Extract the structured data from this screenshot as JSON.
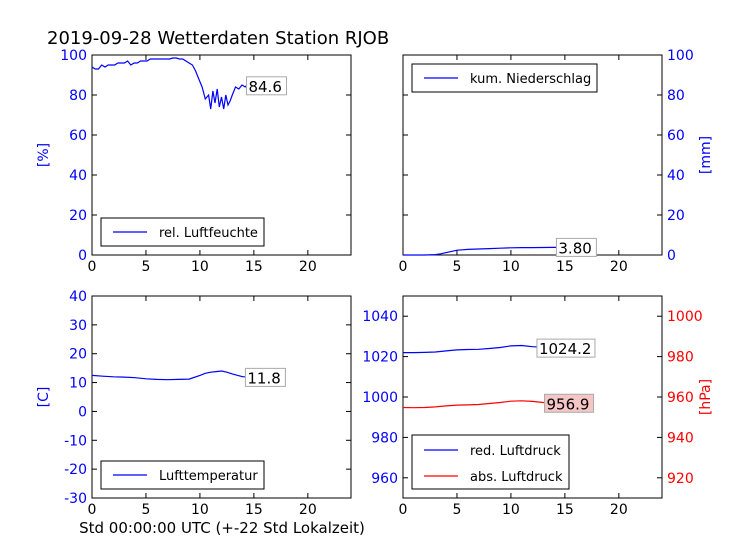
{
  "title": "2019-09-28 Wetterdaten Station RJOB",
  "xlabel": "Std 00:00:00 UTC (+-22 Std Lokalzeit)",
  "colors": {
    "blue": "#0000ff",
    "red": "#ff0000",
    "annot_red_bg": "#f4c6c6",
    "annot_bg": "#ffffff"
  },
  "chart_data": [
    {
      "type": "line",
      "panel": "top-left",
      "ylabel": "[%]",
      "ylabel_side": "left",
      "ylabel_color": "#0000ff",
      "xlim": [
        0,
        24
      ],
      "ylim": [
        0,
        100
      ],
      "xticks": [
        0,
        5,
        10,
        15,
        20
      ],
      "yticks": [
        0,
        20,
        40,
        60,
        80,
        100
      ],
      "legend": {
        "placement": "bottom-left"
      },
      "series": [
        {
          "name": "rel. Luftfeuchte",
          "color": "#0000ff",
          "x": [
            0,
            0.3,
            0.6,
            0.9,
            1.2,
            1.5,
            1.8,
            2.1,
            2.4,
            2.7,
            3.0,
            3.3,
            3.6,
            3.9,
            4.2,
            4.5,
            4.8,
            5.1,
            5.4,
            5.7,
            6.0,
            6.3,
            6.6,
            6.9,
            7.2,
            7.5,
            7.8,
            8.1,
            8.4,
            8.7,
            9.0,
            9.3,
            9.6,
            9.9,
            10.2,
            10.5,
            10.8,
            11.0,
            11.2,
            11.4,
            11.6,
            11.8,
            12.0,
            12.2,
            12.4,
            12.6,
            12.8,
            13.0,
            13.3,
            13.6,
            13.9,
            14.2,
            14.5,
            14.8,
            15.1,
            15.4,
            15.7,
            16.0,
            16.3,
            16.6,
            16.9,
            17.2
          ],
          "y": [
            94,
            93,
            93,
            95,
            94,
            95,
            95,
            95,
            96,
            96,
            96,
            97,
            95,
            96,
            96,
            97,
            97,
            97,
            98,
            98,
            98,
            98,
            98,
            98,
            98,
            98.5,
            98.5,
            98,
            98,
            97,
            96,
            95,
            92,
            88,
            84,
            78,
            80,
            73,
            82,
            76,
            83,
            74,
            79,
            73,
            80,
            75,
            77,
            80,
            84,
            83,
            85,
            84,
            86,
            83,
            86,
            83,
            84,
            82,
            85,
            82,
            84,
            84.6
          ]
        }
      ],
      "annotation": {
        "text": "84.6",
        "x": 14.5,
        "y": 84.6
      }
    },
    {
      "type": "line",
      "panel": "top-right",
      "ylabel": "[mm]",
      "ylabel_side": "right",
      "ylabel_color": "#0000ff",
      "xlim": [
        0,
        24
      ],
      "ylim": [
        0,
        100
      ],
      "xticks": [
        0,
        5,
        10,
        15,
        20
      ],
      "yticks": [
        0,
        20,
        40,
        60,
        80,
        100
      ],
      "legend": {
        "placement": "top-left"
      },
      "series": [
        {
          "name": "kum. Niederschlag",
          "color": "#0000ff",
          "x": [
            0,
            1,
            2,
            3,
            3.5,
            4,
            4.5,
            5,
            5.5,
            6,
            7,
            8,
            9,
            10,
            11,
            12,
            13,
            14,
            15,
            16,
            17.2
          ],
          "y": [
            0,
            0,
            0,
            0.2,
            0.6,
            1.2,
            1.8,
            2.4,
            2.6,
            2.8,
            3.0,
            3.2,
            3.4,
            3.6,
            3.7,
            3.7,
            3.75,
            3.8,
            3.8,
            3.8,
            3.8
          ]
        }
      ],
      "annotation": {
        "text": "3.80",
        "x": 14.4,
        "y": 3.8
      }
    },
    {
      "type": "line",
      "panel": "bottom-left",
      "ylabel": "[C]",
      "ylabel_side": "left",
      "ylabel_color": "#0000ff",
      "xlim": [
        0,
        24
      ],
      "ylim": [
        -30,
        40
      ],
      "xticks": [
        0,
        5,
        10,
        15,
        20
      ],
      "yticks": [
        -30,
        -20,
        -10,
        0,
        10,
        20,
        30,
        40
      ],
      "legend": {
        "placement": "bottom-left"
      },
      "series": [
        {
          "name": "Lufttemperatur",
          "color": "#0000ff",
          "x": [
            0,
            1,
            2,
            3,
            4,
            5,
            6,
            7,
            8,
            9,
            10,
            10.5,
            11,
            11.5,
            12,
            12.5,
            13,
            13.5,
            14,
            15,
            16,
            17.2
          ],
          "y": [
            12.5,
            12.2,
            12.0,
            11.9,
            11.7,
            11.3,
            11.1,
            11.0,
            11.1,
            11.2,
            12.5,
            13.2,
            13.6,
            13.8,
            14.0,
            13.6,
            13.0,
            12.5,
            12.0,
            12.0,
            11.9,
            11.8
          ]
        }
      ],
      "annotation": {
        "text": "11.8",
        "x": 14.4,
        "y": 11.8
      }
    },
    {
      "type": "line",
      "panel": "bottom-right",
      "ylabel": "[hPa]",
      "ylabel_side": "right",
      "ylabel_color": "#ff0000",
      "xlim": [
        0,
        24
      ],
      "ylim_left": [
        950,
        1050
      ],
      "ylim_right": [
        910,
        1010
      ],
      "xticks": [
        0,
        5,
        10,
        15,
        20
      ],
      "yticks_left": [
        960,
        980,
        1000,
        1020,
        1040
      ],
      "yticks_right": [
        920,
        940,
        960,
        980,
        1000
      ],
      "legend": {
        "placement": "bottom-left"
      },
      "series": [
        {
          "name": "red. Luftdruck",
          "color": "#0000ff",
          "axis": "left",
          "x": [
            0,
            1,
            2,
            3,
            4,
            5,
            6,
            7,
            8,
            9,
            10,
            11,
            12,
            13,
            14,
            15,
            16,
            17.2
          ],
          "y": [
            1022.0,
            1022.0,
            1022.1,
            1022.3,
            1022.8,
            1023.3,
            1023.5,
            1023.6,
            1024.0,
            1024.5,
            1025.3,
            1025.5,
            1024.9,
            1024.6,
            1024.3,
            1024.2,
            1024.2,
            1024.2
          ]
        },
        {
          "name": "abs. Luftdruck",
          "color": "#ff0000",
          "axis": "right",
          "x": [
            0,
            1,
            2,
            3,
            4,
            5,
            6,
            7,
            8,
            9,
            10,
            11,
            12,
            13,
            14,
            15,
            16,
            17.2
          ],
          "y": [
            954.8,
            954.7,
            954.8,
            955.1,
            955.6,
            956.0,
            956.1,
            956.3,
            956.8,
            957.3,
            957.9,
            958.1,
            957.8,
            957.3,
            957.0,
            956.9,
            956.9,
            956.9
          ]
        }
      ],
      "annotations": [
        {
          "text": "1024.2",
          "x": 12.6,
          "y": 1024.2,
          "axis": "left"
        },
        {
          "text": "956.9",
          "x": 13.3,
          "y": 956.9,
          "axis": "right"
        }
      ]
    }
  ]
}
